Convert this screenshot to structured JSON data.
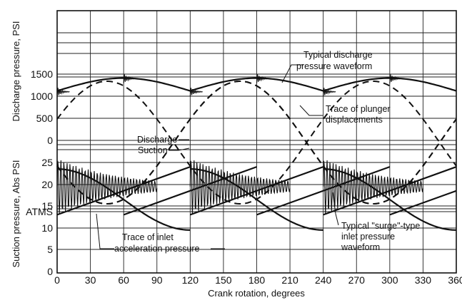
{
  "chart_data": {
    "type": "line",
    "title": "",
    "xlabel": "Crank rotation, degrees",
    "xlim": [
      0,
      360
    ],
    "x_ticks": [
      "0",
      "30",
      "60",
      "90",
      "120",
      "150",
      "180",
      "210",
      "240",
      "270",
      "300",
      "330",
      "360"
    ],
    "grid": true,
    "panels": [
      {
        "name": "discharge",
        "ylabel": "Discharge pressure, PSI",
        "ylim": [
          0,
          2000
        ],
        "y_ticks": [
          "0",
          "500",
          "1000",
          "1500"
        ],
        "series": [
          {
            "name": "Typical discharge pressure waveform",
            "style": "solid",
            "x": [
              0,
              15,
              30,
              45,
              60,
              75,
              90,
              105,
              120,
              135,
              150,
              165,
              180,
              195,
              210,
              225,
              240,
              255,
              270,
              285,
              300,
              315,
              330,
              345,
              360
            ],
            "y": [
              1100,
              1300,
              1370,
              1390,
              1420,
              1390,
              1300,
              1200,
              1100,
              1300,
              1370,
              1390,
              1420,
              1390,
              1300,
              1200,
              1100,
              1300,
              1370,
              1390,
              1420,
              1390,
              1300,
              1200,
              1100
            ]
          },
          {
            "name": "Trace of plunger displacements",
            "style": "dashed",
            "x": [
              0,
              30,
              60,
              90,
              120,
              150,
              180,
              210,
              240,
              270,
              300,
              330,
              360
            ],
            "y": [
              0,
              300,
              1100,
              1700,
              1100,
              300,
              0,
              300,
              1100,
              1700,
              1100,
              300,
              0
            ]
          }
        ]
      },
      {
        "name": "suction",
        "ylabel": "Suction pressure, Abs PSI",
        "ylim": [
          0,
          25
        ],
        "y_ticks": [
          "0",
          "5",
          "10",
          "15",
          "20",
          "25",
          "ATMS"
        ],
        "series": [
          {
            "name": "Trace of inlet acceleration pressure",
            "style": "solid",
            "x": [
              0,
              30,
              60,
              60.5,
              90,
              120,
              120.5,
              150,
              180,
              180.5,
              210,
              240,
              240.5,
              270,
              300,
              300.5,
              330,
              360
            ],
            "y": [
              13,
              17,
              21,
              13,
              18,
              24,
              13,
              18,
              24,
              13,
              18,
              24,
              13,
              18,
              24,
              13,
              18,
              24
            ]
          },
          {
            "name": "Typical surge-type inlet pressure waveform",
            "style": "oscillating",
            "x": [
              0,
              15,
              30,
              45,
              60,
              75,
              90,
              120,
              135,
              150,
              165,
              180,
              195,
              210,
              240,
              255,
              270,
              285,
              300,
              315,
              330
            ],
            "y": [
              20,
              22,
              21,
              20,
              20,
              19,
              18,
              20,
              22,
              21,
              20,
              20,
              19,
              18,
              20,
              22,
              21,
              20,
              20,
              19,
              18
            ]
          },
          {
            "name": "Discharge / Suction displacement",
            "style": "dashed",
            "x": [
              0,
              30,
              60,
              90,
              120,
              150,
              180,
              210,
              240,
              270,
              300,
              330,
              360
            ],
            "y": [
              25,
              22,
              19,
              17,
              19,
              22,
              25,
              22,
              19,
              17,
              19,
              22,
              25
            ]
          }
        ]
      }
    ],
    "annotations": {
      "discharge_wave_1": "Typical discharge",
      "discharge_wave_2": "pressure waveform",
      "plunger_1": "Trace of plunger",
      "plunger_2": "displacements",
      "discharge_word": "Discharge",
      "suction_word": "Suction",
      "inlet_accel_1": "Trace of inlet",
      "inlet_accel_2": "acceleration pressure",
      "surge_1": "Typical \"surge\"-type",
      "surge_2": "inlet pressure",
      "surge_3": "waveform"
    }
  }
}
